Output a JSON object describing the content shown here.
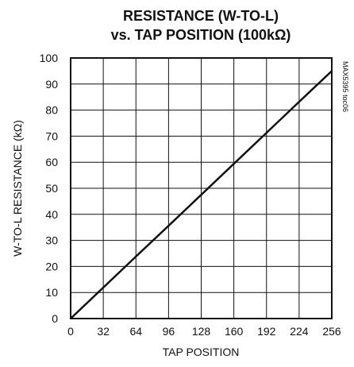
{
  "chart_data": {
    "type": "line",
    "title_line1": "RESISTANCE (W-TO-L)",
    "title_line2": "vs. TAP POSITION (100kΩ)",
    "xlabel": "TAP POSITION",
    "ylabel": "W-TO-L RESISTANCE (kΩ)",
    "figure_ref": "MAX5395 toc06",
    "xlim": [
      0,
      256
    ],
    "ylim": [
      0,
      100
    ],
    "x_ticks": [
      0,
      32,
      64,
      96,
      128,
      160,
      192,
      224,
      256
    ],
    "y_ticks": [
      0,
      10,
      20,
      30,
      40,
      50,
      60,
      70,
      80,
      90,
      100
    ],
    "grid": true,
    "series": [
      {
        "x": [
          0,
          32,
          64,
          96,
          128,
          160,
          192,
          224,
          256
        ],
        "y": [
          0,
          11.9,
          23.8,
          35.6,
          47.5,
          59.4,
          71.3,
          83.2,
          95.0
        ]
      }
    ]
  }
}
